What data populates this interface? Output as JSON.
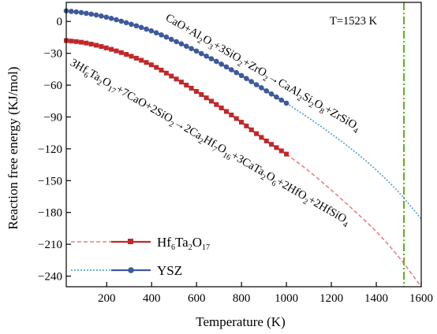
{
  "chart_data": {
    "type": "line",
    "xlabel": "Temperature (K)",
    "ylabel": "Reaction free energy (KJ/mol)",
    "xlim": [
      20,
      1600
    ],
    "ylim": [
      -250,
      18
    ],
    "x_ticks": [
      200,
      400,
      600,
      800,
      1000,
      1200,
      1400,
      1600
    ],
    "y_ticks": [
      0,
      -30,
      -60,
      -90,
      -120,
      -150,
      -180,
      -210,
      -240
    ],
    "grid": false,
    "legend_position": "bottom-left",
    "series": [
      {
        "name": "Hf6Ta2O17",
        "name_parts": {
          "base": "Hf",
          "sub1": "6",
          "mid": "Ta",
          "sub2": "2",
          "end": "O",
          "sub3": "17"
        },
        "color": "#c0282a",
        "extrapolation_color": "#e88080",
        "marker": "square",
        "x": [
          20,
          100,
          200,
          300,
          400,
          500,
          600,
          700,
          800,
          900,
          1000
        ],
        "y": [
          -18,
          -20,
          -25,
          -32,
          -41,
          -53,
          -66,
          -80,
          -95,
          -111,
          -125
        ],
        "extrapolated_x": [
          1000,
          1100,
          1200,
          1300,
          1400,
          1500,
          1600
        ],
        "extrapolated_y": [
          -125,
          -141,
          -159,
          -178,
          -198,
          -222,
          -250
        ]
      },
      {
        "name": "YSZ",
        "color": "#3e5a9c",
        "extrapolation_color": "#5ea6d8",
        "marker": "circle",
        "x": [
          20,
          100,
          200,
          300,
          400,
          500,
          600,
          700,
          800,
          900,
          1000
        ],
        "y": [
          10,
          8,
          4,
          -2,
          -9,
          -18,
          -28,
          -39,
          -51,
          -64,
          -77
        ],
        "extrapolated_x": [
          1000,
          1100,
          1200,
          1300,
          1400,
          1500,
          1600
        ],
        "extrapolated_y": [
          -77,
          -91,
          -106,
          -122,
          -140,
          -161,
          -186
        ]
      }
    ],
    "vertical_line": {
      "x": 1523,
      "label": "T=1523 K",
      "color": "#6ab02a"
    },
    "annotations": {
      "ysz_reaction": "CaO+Al2O3+3SiO2+ZrO2→CaAl2Si2O8+ZrSiO4",
      "hf_reaction": "3Hf6Ta2O17+7CaO+2SiO2→2Ca2Hf7O16+3CaTa2O6+2HfO2+2HfSiO4"
    }
  }
}
